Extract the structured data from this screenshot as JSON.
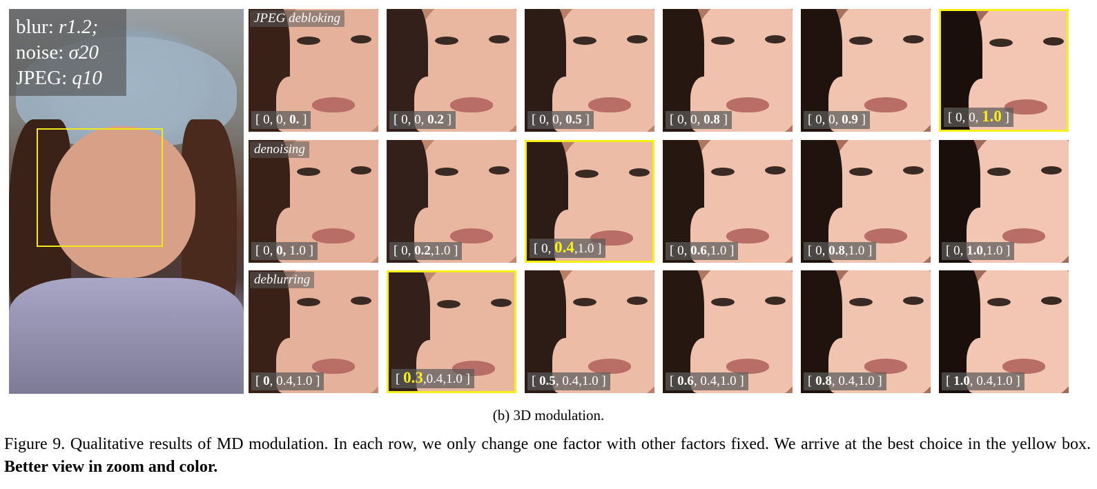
{
  "input": {
    "blur_label": "blur:",
    "blur_value": "r1.2;",
    "noise_label": "noise:",
    "noise_value": "σ20",
    "jpeg_label": "JPEG:",
    "jpeg_value": "q10"
  },
  "rows": [
    {
      "tag": "JPEG debloking",
      "cells": [
        {
          "pre": "[ 0, 0, ",
          "bold": "0.",
          "post": " ]",
          "highlight": false
        },
        {
          "pre": "[ 0, 0, ",
          "bold": "0.2",
          "post": " ]",
          "highlight": false
        },
        {
          "pre": "[ 0, 0, ",
          "bold": "0.5",
          "post": " ]",
          "highlight": false
        },
        {
          "pre": "[ 0, 0, ",
          "bold": "0.8",
          "post": " ]",
          "highlight": false
        },
        {
          "pre": "[ 0, 0, ",
          "bold": "0.9",
          "post": " ]",
          "highlight": false
        },
        {
          "pre": "[ 0, 0, ",
          "bold": "1.0",
          "post": " ]",
          "highlight": true
        }
      ]
    },
    {
      "tag": "denoising",
      "cells": [
        {
          "pre": "[ 0, ",
          "bold": "0,",
          "post": " 1.0 ]",
          "highlight": false
        },
        {
          "pre": "[ 0, ",
          "bold": "0.2",
          "post": ",1.0 ]",
          "highlight": false
        },
        {
          "pre": "[ 0, ",
          "bold": "0.4",
          "post": ",1.0 ]",
          "highlight": true
        },
        {
          "pre": "[ 0, ",
          "bold": "0.6",
          "post": ",1.0 ]",
          "highlight": false
        },
        {
          "pre": "[ 0, ",
          "bold": "0.8",
          "post": ",1.0 ]",
          "highlight": false
        },
        {
          "pre": "[ 0, ",
          "bold": "1.0",
          "post": ",1.0 ]",
          "highlight": false
        }
      ]
    },
    {
      "tag": "deblurring",
      "cells": [
        {
          "pre": "[ ",
          "bold": "0",
          "post": ", 0.4,1.0 ]",
          "highlight": false
        },
        {
          "pre": "[ ",
          "bold": "0.3",
          "post": ",0.4,1.0 ]",
          "highlight": true
        },
        {
          "pre": "[ ",
          "bold": "0.5",
          "post": ", 0.4,1.0 ]",
          "highlight": false
        },
        {
          "pre": "[ ",
          "bold": "0.6",
          "post": ", 0.4,1.0 ]",
          "highlight": false
        },
        {
          "pre": "[ ",
          "bold": "0.8",
          "post": ", 0.4,1.0 ]",
          "highlight": false
        },
        {
          "pre": "[ ",
          "bold": "1.0",
          "post": ", 0.4,1.0 ]",
          "highlight": false
        }
      ]
    }
  ],
  "subcaption": "(b)  3D modulation.",
  "caption": {
    "text": "Figure 9. Qualitative results of MD modulation.  In each row, we only change one factor with other factors fixed.  We arrive at the best choice in the yellow box. ",
    "bold": "Better view in zoom and color."
  },
  "colors": {
    "highlight": "#f7ef1a",
    "overlay": "#5a5a5a"
  }
}
